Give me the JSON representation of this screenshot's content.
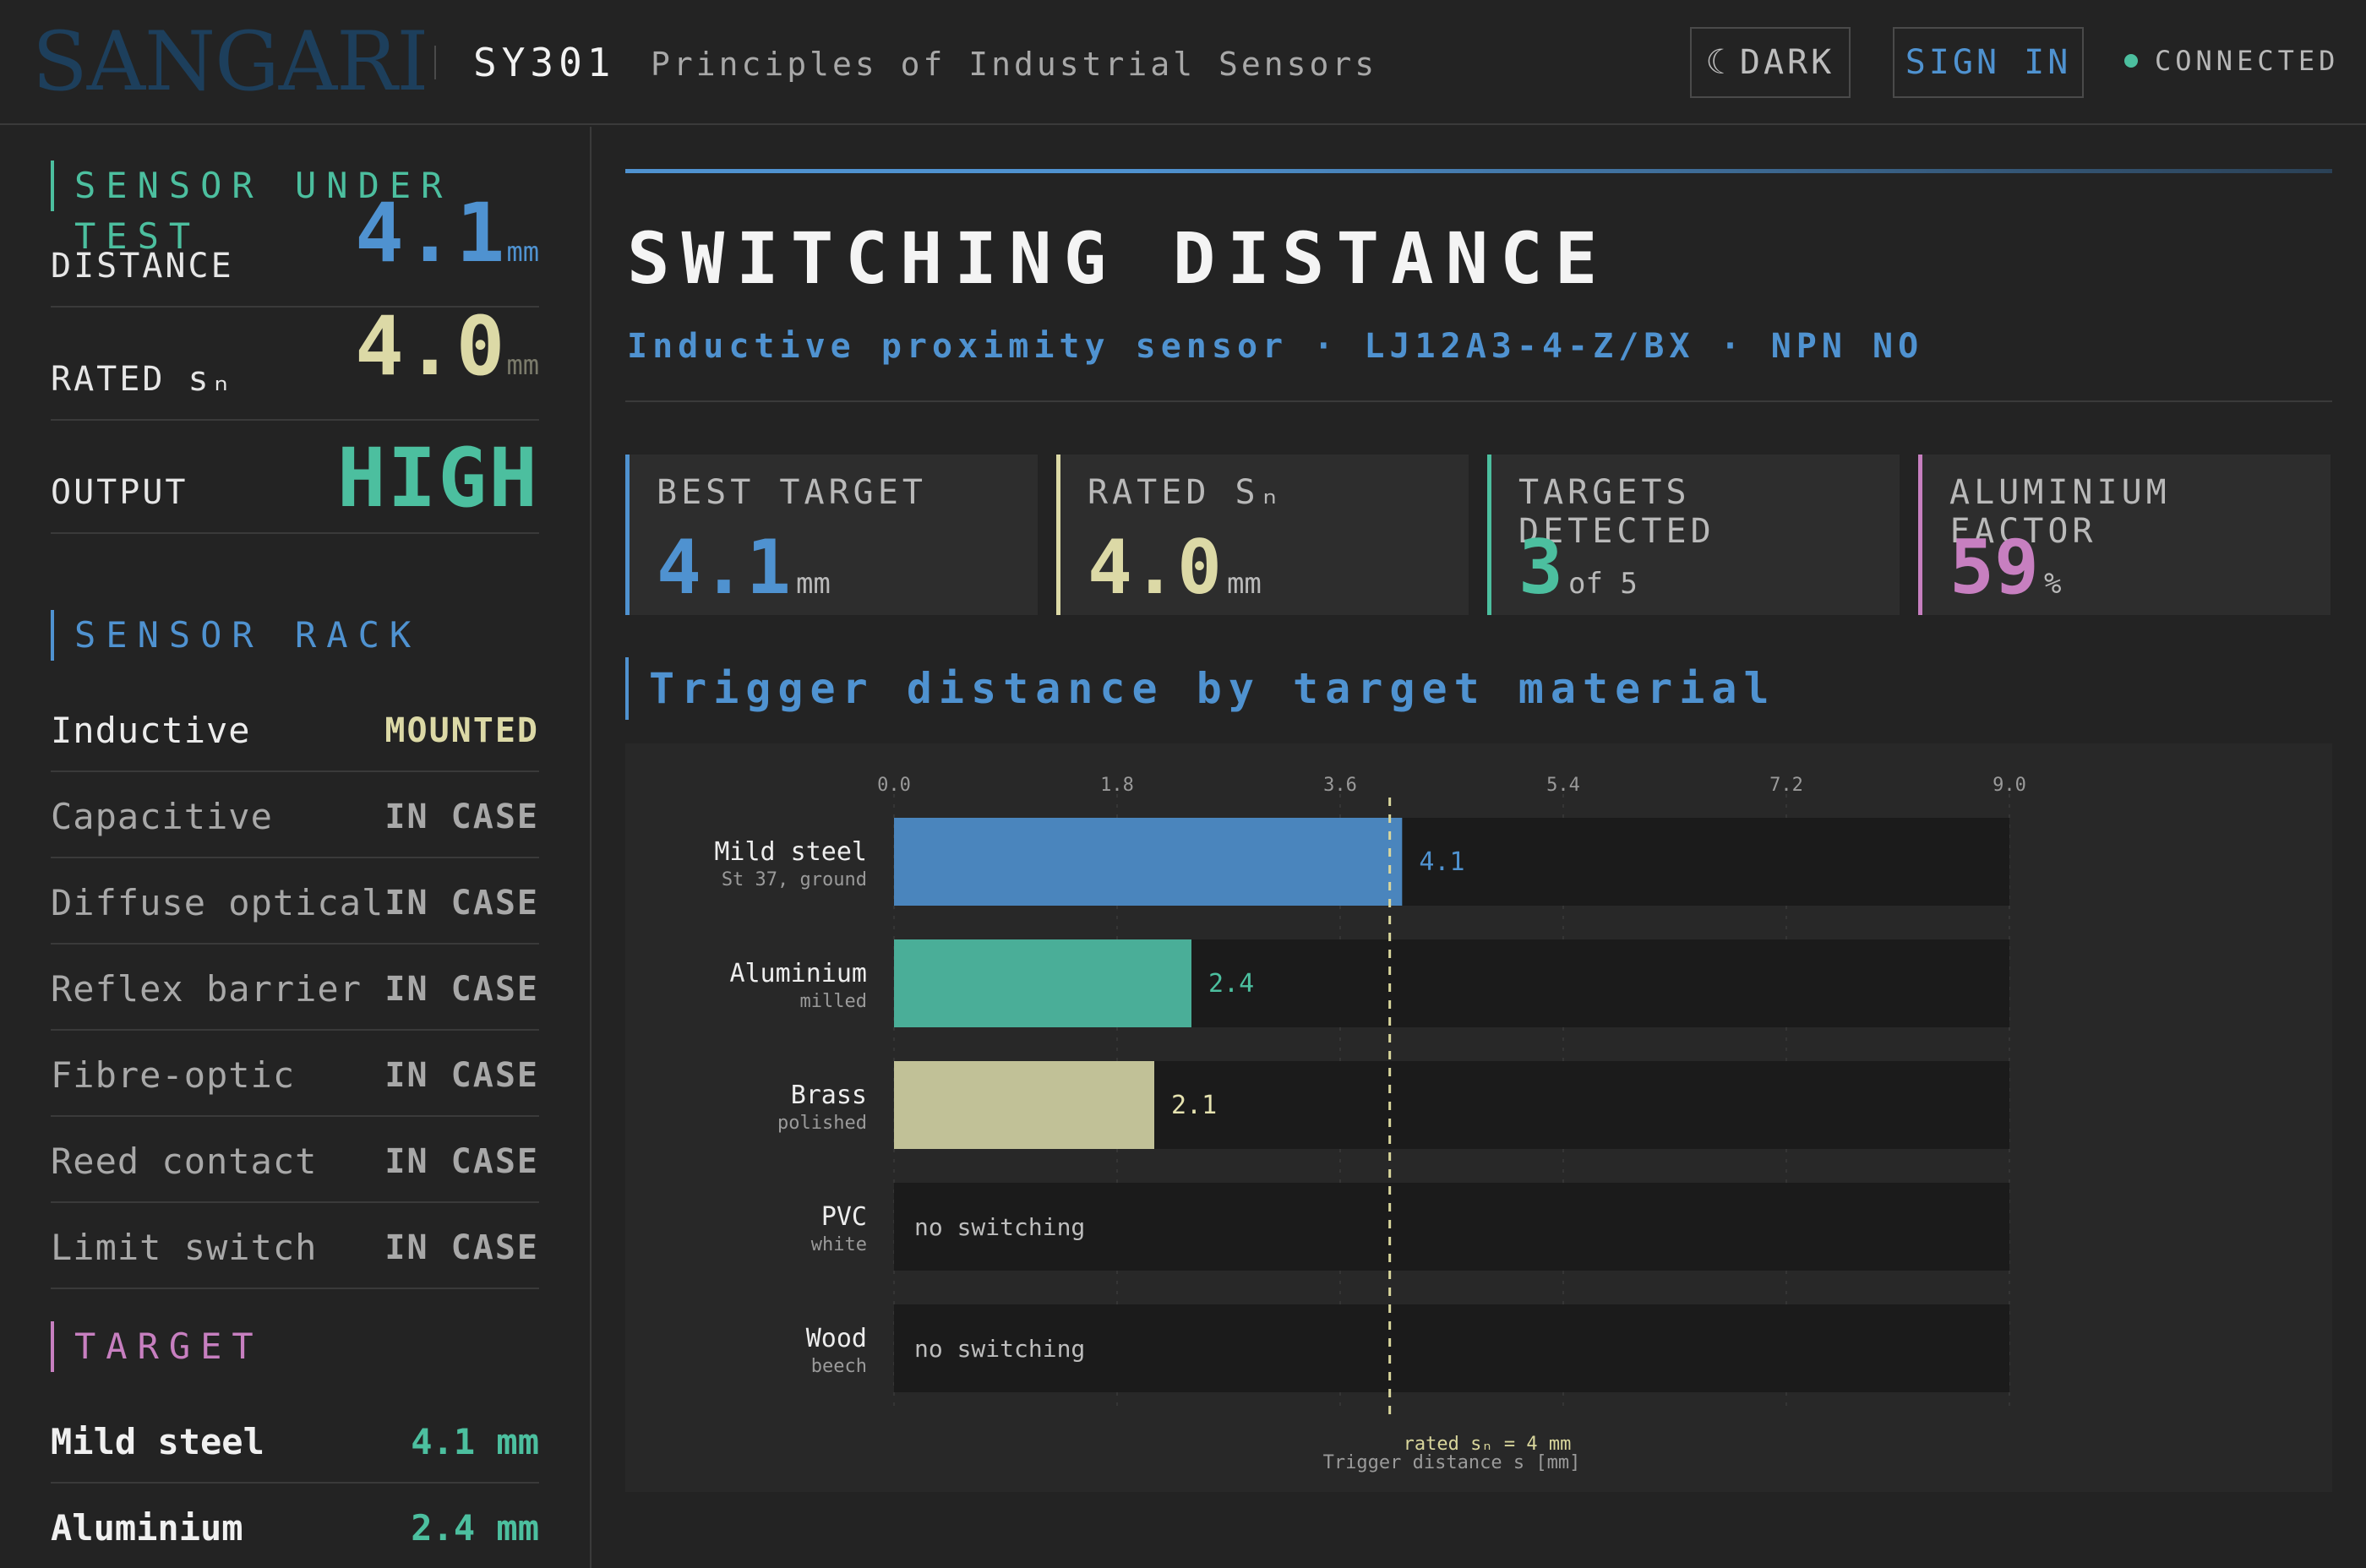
{
  "header": {
    "brand": "SANGARI",
    "course_code": "SY301",
    "course_title": "Principles of Industrial Sensors",
    "theme_label": "DARK",
    "sign_in_label": "SIGN IN",
    "status": "CONNECTED"
  },
  "sidebar": {
    "sensor_title": "SENSOR UNDER TEST",
    "readouts": [
      {
        "label": "DISTANCE",
        "value": "4.1",
        "unit": "mm",
        "color": "#4f92d0"
      },
      {
        "label": "RATED sₙ",
        "value": "4.0",
        "unit": "mm",
        "color": "#dcd9a6"
      },
      {
        "label": "OUTPUT",
        "value": "HIGH",
        "unit": "",
        "color": "#4cbf9f"
      }
    ],
    "rack_title": "SENSOR RACK",
    "rack": [
      {
        "name": "Inductive",
        "status": "MOUNTED"
      },
      {
        "name": "Capacitive",
        "status": "IN CASE"
      },
      {
        "name": "Diffuse optical",
        "status": "IN CASE"
      },
      {
        "name": "Reflex barrier",
        "status": "IN CASE"
      },
      {
        "name": "Fibre-optic",
        "status": "IN CASE"
      },
      {
        "name": "Reed contact",
        "status": "IN CASE"
      },
      {
        "name": "Limit switch",
        "status": "IN CASE"
      }
    ],
    "target_title": "TARGET",
    "targets": [
      {
        "name": "Mild steel",
        "value": "4.1 mm"
      },
      {
        "name": "Aluminium",
        "value": "2.4 mm"
      }
    ]
  },
  "main": {
    "title": "SWITCHING DISTANCE",
    "subtitle": "Inductive proximity sensor · LJ12A3-4-Z/BX · NPN NO",
    "cards": [
      {
        "title": "BEST TARGET",
        "value": "4.1",
        "unit": "mm",
        "color": "#4f92d0"
      },
      {
        "title": "RATED Sₙ",
        "value": "4.0",
        "unit": "mm",
        "color": "#dcd9a6"
      },
      {
        "title": "TARGETS DETECTED",
        "value": "3",
        "unit": "of 5",
        "color": "#4cbf9f"
      },
      {
        "title": "ALUMINIUM FACTOR",
        "value": "59",
        "unit": "%",
        "color": "#c77fc0"
      }
    ],
    "chart_title": "Trigger distance by target material"
  },
  "colors": {
    "blue": "#4f92d0",
    "teal": "#4cbf9f",
    "sand": "#c1c197",
    "pink": "#c77fc0",
    "rated_line": "#d9d69c"
  },
  "chart_data": {
    "type": "bar",
    "orientation": "horizontal",
    "categories": [
      "Mild steel",
      "Aluminium",
      "Brass",
      "PVC",
      "Wood"
    ],
    "category_notes": [
      "St 37, ground",
      "milled",
      "polished",
      "white",
      "beech"
    ],
    "values": [
      4.1,
      2.4,
      2.1,
      null,
      null
    ],
    "value_labels": [
      "4.1",
      "2.4",
      "2.1",
      "no switching",
      "no switching"
    ],
    "bar_colors": [
      "#4a85bd",
      "#4aae98",
      "#c1c197",
      null,
      null
    ],
    "xlim": [
      0,
      9
    ],
    "xticks": [
      "0.0",
      "1.8",
      "3.6",
      "5.4",
      "7.2",
      "9.0"
    ],
    "xlabel": "Trigger distance s [mm]",
    "reference_line": {
      "value": 4.0,
      "label": "rated sₙ = 4 mm"
    },
    "grid": true
  }
}
